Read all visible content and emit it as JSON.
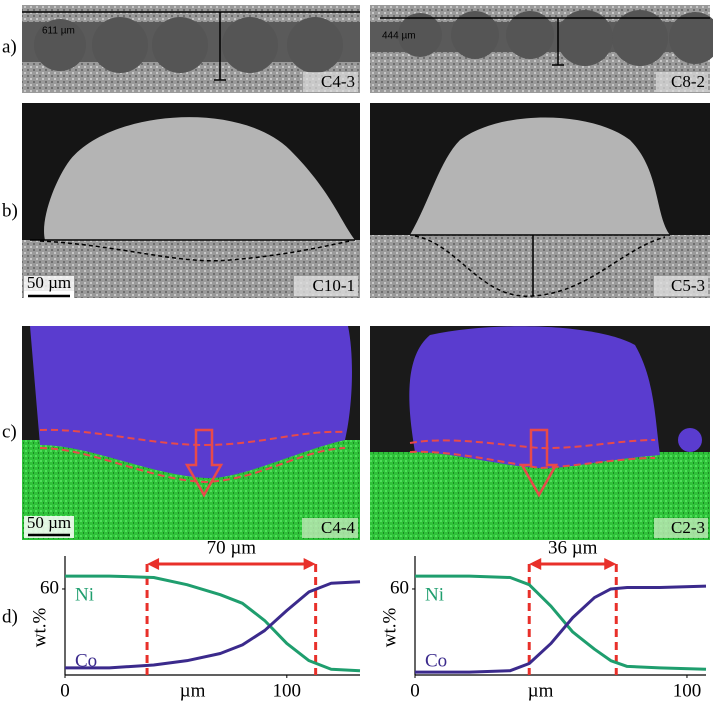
{
  "figure": {
    "panel_labels": [
      "a)",
      "b)",
      "c)",
      "d)"
    ],
    "images": [
      {
        "label": "C4-3",
        "measurement": "611 µm"
      },
      {
        "label": "C8-2",
        "measurement": "444 µm"
      },
      {
        "label": "C10-1",
        "scale_bar": "50 µm"
      },
      {
        "label": "C5-3"
      },
      {
        "label": "C4-4",
        "scale_bar": "50 µm"
      },
      {
        "label": "C2-3"
      }
    ]
  },
  "chart_data": [
    {
      "type": "line",
      "ylabel": "wt.%",
      "xlabel": "µm",
      "annotation": "70 µm",
      "markers": [
        37,
        113
      ],
      "x": [
        0,
        20,
        40,
        55,
        70,
        80,
        90,
        100,
        110,
        120,
        133
      ],
      "series": [
        {
          "name": "Ni",
          "color": "#1f9e6e",
          "values": [
            69,
            69,
            68,
            63,
            56,
            50,
            38,
            22,
            10,
            4,
            3
          ]
        },
        {
          "name": "Co",
          "color": "#3b2a8c",
          "values": [
            5,
            5,
            7,
            10,
            15,
            21,
            31,
            45,
            58,
            64,
            65
          ]
        }
      ],
      "xlim": [
        0,
        133
      ],
      "ylim": [
        0,
        83
      ],
      "xticks": [
        0,
        100
      ],
      "yticks": [
        60
      ]
    },
    {
      "type": "line",
      "ylabel": "wt.%",
      "xlabel": "µm",
      "annotation": "36 µm",
      "markers": [
        42,
        74
      ],
      "x": [
        0,
        20,
        35,
        42,
        50,
        58,
        66,
        72,
        78,
        90,
        107
      ],
      "series": [
        {
          "name": "Ni",
          "color": "#1f9e6e",
          "values": [
            69,
            69,
            68,
            63,
            48,
            30,
            18,
            10,
            6,
            5,
            4
          ]
        },
        {
          "name": "Co",
          "color": "#3b2a8c",
          "values": [
            2,
            2,
            3,
            8,
            22,
            40,
            54,
            60,
            61,
            61,
            62
          ]
        }
      ],
      "xlim": [
        0,
        107
      ],
      "ylim": [
        0,
        83
      ],
      "xticks": [
        0,
        100
      ],
      "yticks": [
        60
      ]
    }
  ]
}
